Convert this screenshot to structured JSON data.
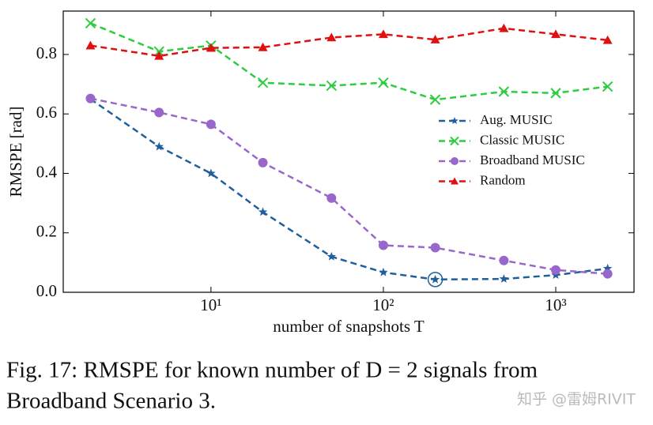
{
  "chart_data": {
    "type": "line",
    "x_label": "number of snapshots T",
    "y_label": "RMSPE [rad]",
    "x": [
      2,
      5,
      10,
      20,
      50,
      100,
      200,
      500,
      1000,
      2000
    ],
    "series": [
      {
        "name": "Aug. MUSIC",
        "color": "#1f5f9c",
        "marker": "star",
        "values": [
          0.65,
          0.49,
          0.4,
          0.27,
          0.12,
          0.067,
          0.043,
          0.045,
          0.058,
          0.08
        ]
      },
      {
        "name": "Classic MUSIC",
        "color": "#2ecc40",
        "marker": "x",
        "values": [
          0.905,
          0.81,
          0.83,
          0.705,
          0.695,
          0.705,
          0.648,
          0.675,
          0.67,
          0.692
        ]
      },
      {
        "name": "Broadband MUSIC",
        "color": "#9966cc",
        "marker": "circle",
        "values": [
          0.652,
          0.605,
          0.565,
          0.436,
          0.317,
          0.158,
          0.15,
          0.107,
          0.075,
          0.062
        ]
      },
      {
        "name": "Random",
        "color": "#e01010",
        "marker": "triangle",
        "values": [
          0.83,
          0.795,
          0.822,
          0.824,
          0.857,
          0.868,
          0.85,
          0.888,
          0.868,
          0.848
        ]
      }
    ],
    "xscale": "log",
    "xlim": [
      1.39,
      2845
    ],
    "xticks": [
      {
        "value": 10,
        "label": "10¹"
      },
      {
        "value": 100,
        "label": "10²"
      },
      {
        "value": 1000,
        "label": "10³"
      }
    ],
    "ylim": [
      0,
      0.946
    ],
    "yticks": [
      {
        "value": 0,
        "label": "0.0"
      },
      0.2,
      0.4,
      0.6,
      0.8
    ],
    "legend": "right",
    "caption": [
      "Fig. 17: RMSPE for known number of D = 2 signals from",
      "Broadband Scenario 3."
    ],
    "watermark": "知乎 @雷姆RIVIT"
  }
}
